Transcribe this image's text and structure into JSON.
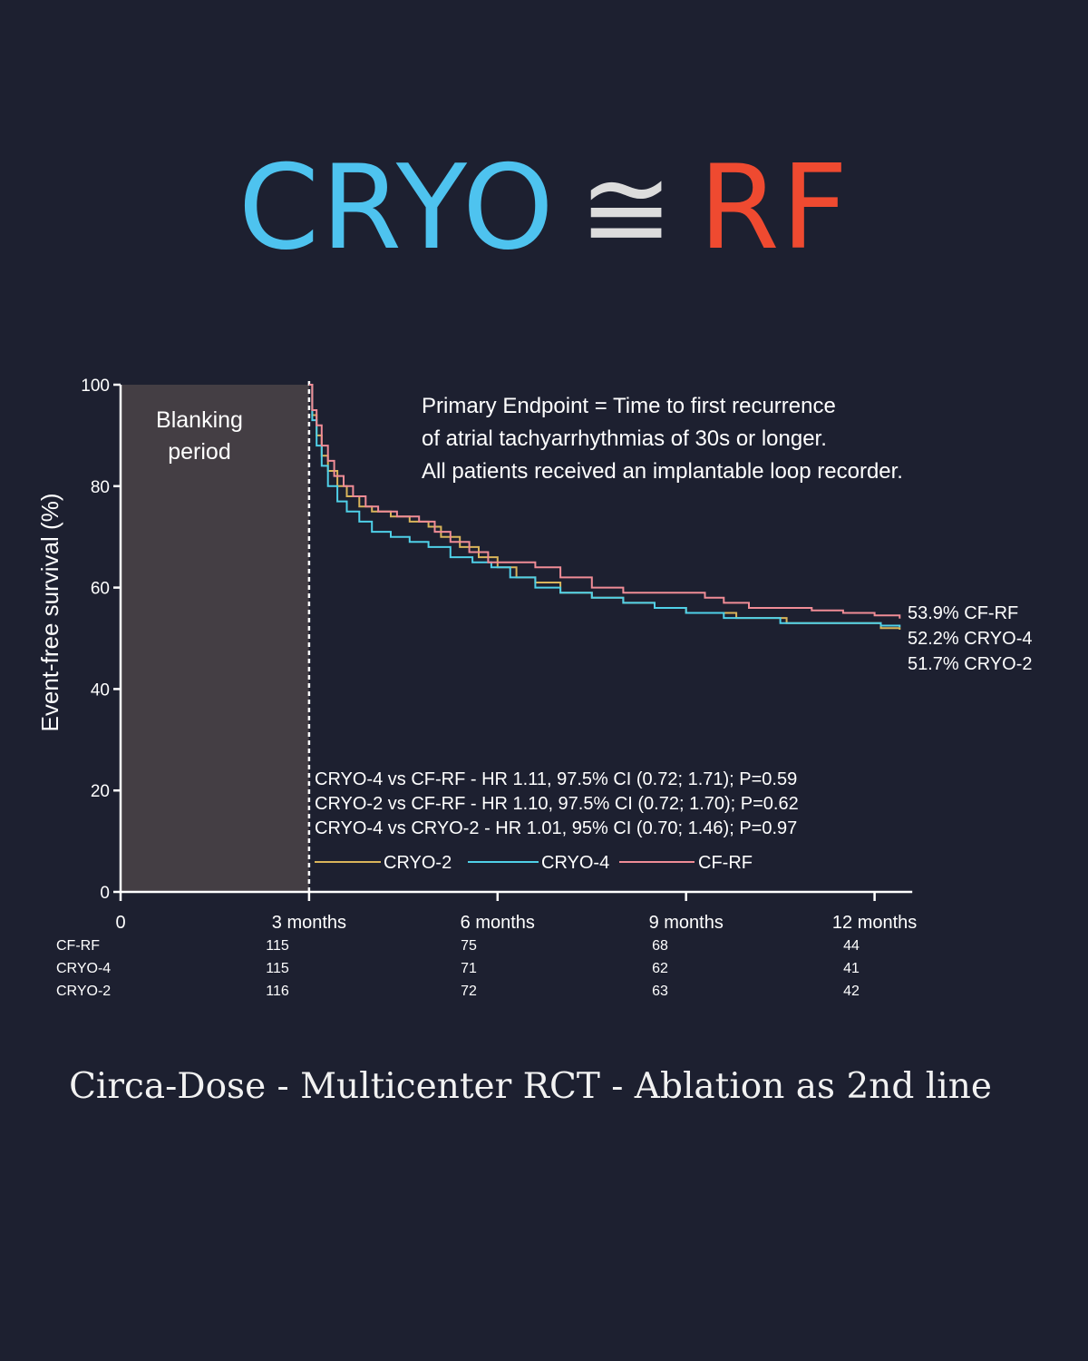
{
  "headline": {
    "left": "CRYO",
    "symbol": "≅",
    "right": "RF"
  },
  "caption": "Circa-Dose - Multicenter RCT - Ablation as 2nd line",
  "colors": {
    "background": "#1d2030",
    "cryo": "#4ec3ef",
    "rf": "#ef4a30",
    "series_cf_rf": "#f08c96",
    "series_cryo4": "#4fd0e8",
    "series_cryo2": "#d9b45a",
    "blanking": "#443e44"
  },
  "chart_data": {
    "type": "line",
    "title": "",
    "ylabel": "Event-free survival (%)",
    "xlabel": "",
    "xlim": [
      0,
      12.6
    ],
    "ylim": [
      0,
      100
    ],
    "yticks": [
      "0",
      "20",
      "40",
      "60",
      "80",
      "100"
    ],
    "xticks": [
      {
        "value": 0,
        "label": "0"
      },
      {
        "value": 3,
        "label": "3 months"
      },
      {
        "value": 6,
        "label": "6 months"
      },
      {
        "value": 9,
        "label": "9 months"
      },
      {
        "value": 12,
        "label": "12 months"
      }
    ],
    "blanking": {
      "label_line1": "Blanking",
      "label_line2": "period",
      "from": 0,
      "to": 3
    },
    "endpoint_note": [
      "Primary Endpoint = Time to first recurrence",
      "of atrial tachyarrhythmias of 30s or longer.",
      "All patients received an implantable loop recorder."
    ],
    "stats": [
      "CRYO-4 vs CF-RF - HR 1.11, 97.5% CI (0.72; 1.71); P=0.59",
      "CRYO-2 vs CF-RF - HR 1.10, 97.5% CI (0.72; 1.70); P=0.62",
      "CRYO-4 vs CRYO-2 - HR 1.01, 95% CI (0.70; 1.46); P=0.97"
    ],
    "legend": [
      "CRYO-2",
      "CRYO-4",
      "CF-RF"
    ],
    "end_labels": [
      "53.9% CF-RF",
      "52.2% CRYO-4",
      "51.7% CRYO-2"
    ],
    "series": [
      {
        "name": "CF-RF",
        "points": [
          [
            3,
            100
          ],
          [
            3.05,
            95
          ],
          [
            3.12,
            92
          ],
          [
            3.2,
            88
          ],
          [
            3.3,
            85
          ],
          [
            3.4,
            82
          ],
          [
            3.55,
            80
          ],
          [
            3.7,
            78
          ],
          [
            3.9,
            76
          ],
          [
            4.1,
            75
          ],
          [
            4.4,
            74
          ],
          [
            4.75,
            73
          ],
          [
            5.0,
            71
          ],
          [
            5.25,
            69
          ],
          [
            5.55,
            67
          ],
          [
            5.85,
            65
          ],
          [
            6.2,
            65
          ],
          [
            6.6,
            64
          ],
          [
            7.0,
            62
          ],
          [
            7.5,
            60
          ],
          [
            8.0,
            59
          ],
          [
            9.0,
            59
          ],
          [
            9.3,
            58
          ],
          [
            9.6,
            57
          ],
          [
            10.0,
            56
          ],
          [
            10.5,
            56
          ],
          [
            11.0,
            55.5
          ],
          [
            11.5,
            55
          ],
          [
            12.0,
            54.5
          ],
          [
            12.4,
            53.9
          ]
        ]
      },
      {
        "name": "CRYO-4",
        "points": [
          [
            3,
            100
          ],
          [
            3.05,
            93
          ],
          [
            3.12,
            88
          ],
          [
            3.2,
            84
          ],
          [
            3.3,
            80
          ],
          [
            3.45,
            77
          ],
          [
            3.6,
            75
          ],
          [
            3.8,
            73
          ],
          [
            4.0,
            71
          ],
          [
            4.3,
            70
          ],
          [
            4.6,
            69
          ],
          [
            4.9,
            68
          ],
          [
            5.25,
            66
          ],
          [
            5.6,
            65
          ],
          [
            5.9,
            64
          ],
          [
            6.2,
            62
          ],
          [
            6.6,
            60
          ],
          [
            7.0,
            59
          ],
          [
            7.5,
            58
          ],
          [
            8.0,
            57
          ],
          [
            8.5,
            56
          ],
          [
            9.0,
            55
          ],
          [
            9.6,
            54
          ],
          [
            10.0,
            54
          ],
          [
            10.5,
            53
          ],
          [
            11.2,
            53
          ],
          [
            11.9,
            53
          ],
          [
            12.1,
            52.5
          ],
          [
            12.4,
            52.2
          ]
        ]
      },
      {
        "name": "CRYO-2",
        "points": [
          [
            3,
            100
          ],
          [
            3.05,
            94
          ],
          [
            3.12,
            90
          ],
          [
            3.2,
            86
          ],
          [
            3.3,
            83
          ],
          [
            3.45,
            80
          ],
          [
            3.6,
            78
          ],
          [
            3.8,
            76
          ],
          [
            4.0,
            75
          ],
          [
            4.3,
            74
          ],
          [
            4.6,
            73
          ],
          [
            4.9,
            72
          ],
          [
            5.1,
            70
          ],
          [
            5.4,
            68
          ],
          [
            5.7,
            66
          ],
          [
            6.0,
            64
          ],
          [
            6.3,
            62
          ],
          [
            6.6,
            61
          ],
          [
            7.0,
            59
          ],
          [
            7.5,
            58
          ],
          [
            8.0,
            57
          ],
          [
            8.5,
            56
          ],
          [
            9.0,
            55
          ],
          [
            9.4,
            55
          ],
          [
            9.8,
            54
          ],
          [
            10.2,
            54
          ],
          [
            10.6,
            53
          ],
          [
            11.2,
            53
          ],
          [
            11.8,
            53
          ],
          [
            12.1,
            52
          ],
          [
            12.4,
            51.7
          ]
        ]
      }
    ],
    "risk_table": {
      "rows": [
        {
          "label": "CF-RF",
          "counts": [
            "115",
            "75",
            "68",
            "44"
          ]
        },
        {
          "label": "CRYO-4",
          "counts": [
            "115",
            "71",
            "62",
            "41"
          ]
        },
        {
          "label": "CRYO-2",
          "counts": [
            "116",
            "72",
            "63",
            "42"
          ]
        }
      ],
      "times": [
        3,
        6,
        9,
        12
      ]
    }
  }
}
